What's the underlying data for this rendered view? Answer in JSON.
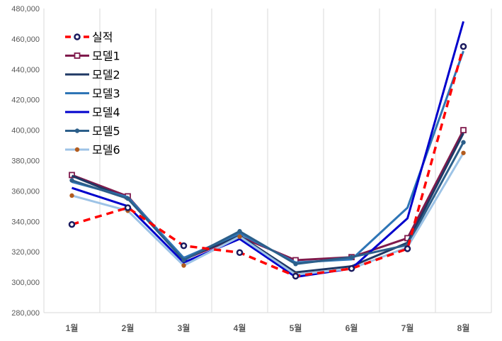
{
  "chart_data": {
    "type": "line",
    "title": "",
    "xlabel": "",
    "ylabel": "",
    "categories": [
      "1월",
      "2월",
      "3월",
      "4월",
      "5월",
      "6월",
      "7월",
      "8월"
    ],
    "ylim": [
      280000,
      480000
    ],
    "y_ticks": [
      280000,
      300000,
      320000,
      340000,
      360000,
      380000,
      400000,
      420000,
      440000,
      460000,
      480000
    ],
    "y_tick_labels": [
      "280,000",
      "300,000",
      "320,000",
      "340,000",
      "360,000",
      "380,000",
      "400,000",
      "420,000",
      "440,000",
      "460,000",
      "480,000"
    ],
    "grid": "vertical",
    "legend_position": "top-left",
    "series": [
      {
        "name": "실적",
        "color": "#ff0000",
        "style": "dashed",
        "marker": "circle-open",
        "values": [
          338000,
          349000,
          324000,
          319500,
          304000,
          309000,
          322000,
          455000
        ]
      },
      {
        "name": "모델1",
        "color": "#7f1a4c",
        "style": "solid",
        "marker": "square-open",
        "values": [
          370500,
          356500,
          315000,
          330000,
          314500,
          316500,
          329000,
          400000
        ]
      },
      {
        "name": "모델2",
        "color": "#1f3864",
        "style": "solid",
        "marker": "none",
        "values": [
          370000,
          355000,
          315500,
          330500,
          306500,
          310500,
          326000,
          398000
        ]
      },
      {
        "name": "모델3",
        "color": "#2e75b6",
        "style": "solid",
        "marker": "none",
        "values": [
          366000,
          356000,
          316000,
          332000,
          313000,
          315000,
          349000,
          452000
        ]
      },
      {
        "name": "모델4",
        "color": "#0000cc",
        "style": "solid",
        "marker": "none",
        "values": [
          362000,
          350000,
          313000,
          328500,
          303500,
          309000,
          342000,
          471500
        ]
      },
      {
        "name": "모델5",
        "color": "#2c5f8a",
        "style": "solid",
        "marker": "dot",
        "values": [
          367000,
          355000,
          314500,
          333500,
          312000,
          316500,
          324500,
          392000
        ]
      },
      {
        "name": "모델6",
        "color": "#9dc3e6",
        "style": "solid",
        "marker": "dot-brown",
        "values": [
          357000,
          347000,
          311000,
          330000,
          305000,
          309000,
          323000,
          385000
        ]
      }
    ]
  }
}
